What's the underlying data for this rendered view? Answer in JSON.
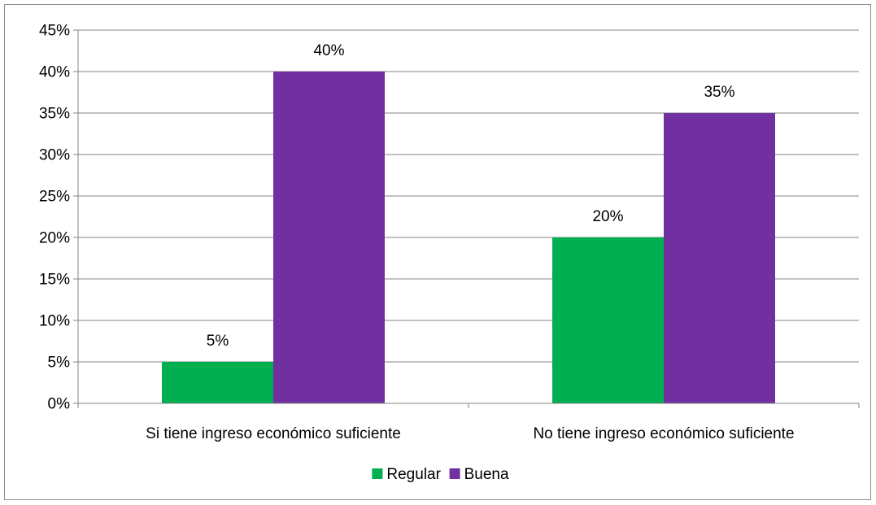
{
  "chart_data": {
    "type": "bar",
    "categories": [
      "Si tiene ingreso económico suficiente",
      "No tiene ingreso económico suficiente"
    ],
    "series": [
      {
        "name": "Regular",
        "color": "#00b050",
        "values": [
          5,
          20
        ],
        "labels": [
          "5%",
          "20%"
        ]
      },
      {
        "name": "Buena",
        "color": "#7030a0",
        "values": [
          40,
          35
        ],
        "labels": [
          "40%",
          "35%"
        ]
      }
    ],
    "ylim": [
      0,
      45
    ],
    "yticks": [
      0,
      5,
      10,
      15,
      20,
      25,
      30,
      35,
      40,
      45
    ],
    "ytick_labels": [
      "0%",
      "5%",
      "10%",
      "15%",
      "20%",
      "25%",
      "30%",
      "35%",
      "40%",
      "45%"
    ],
    "grid": true,
    "legend_position": "bottom"
  }
}
